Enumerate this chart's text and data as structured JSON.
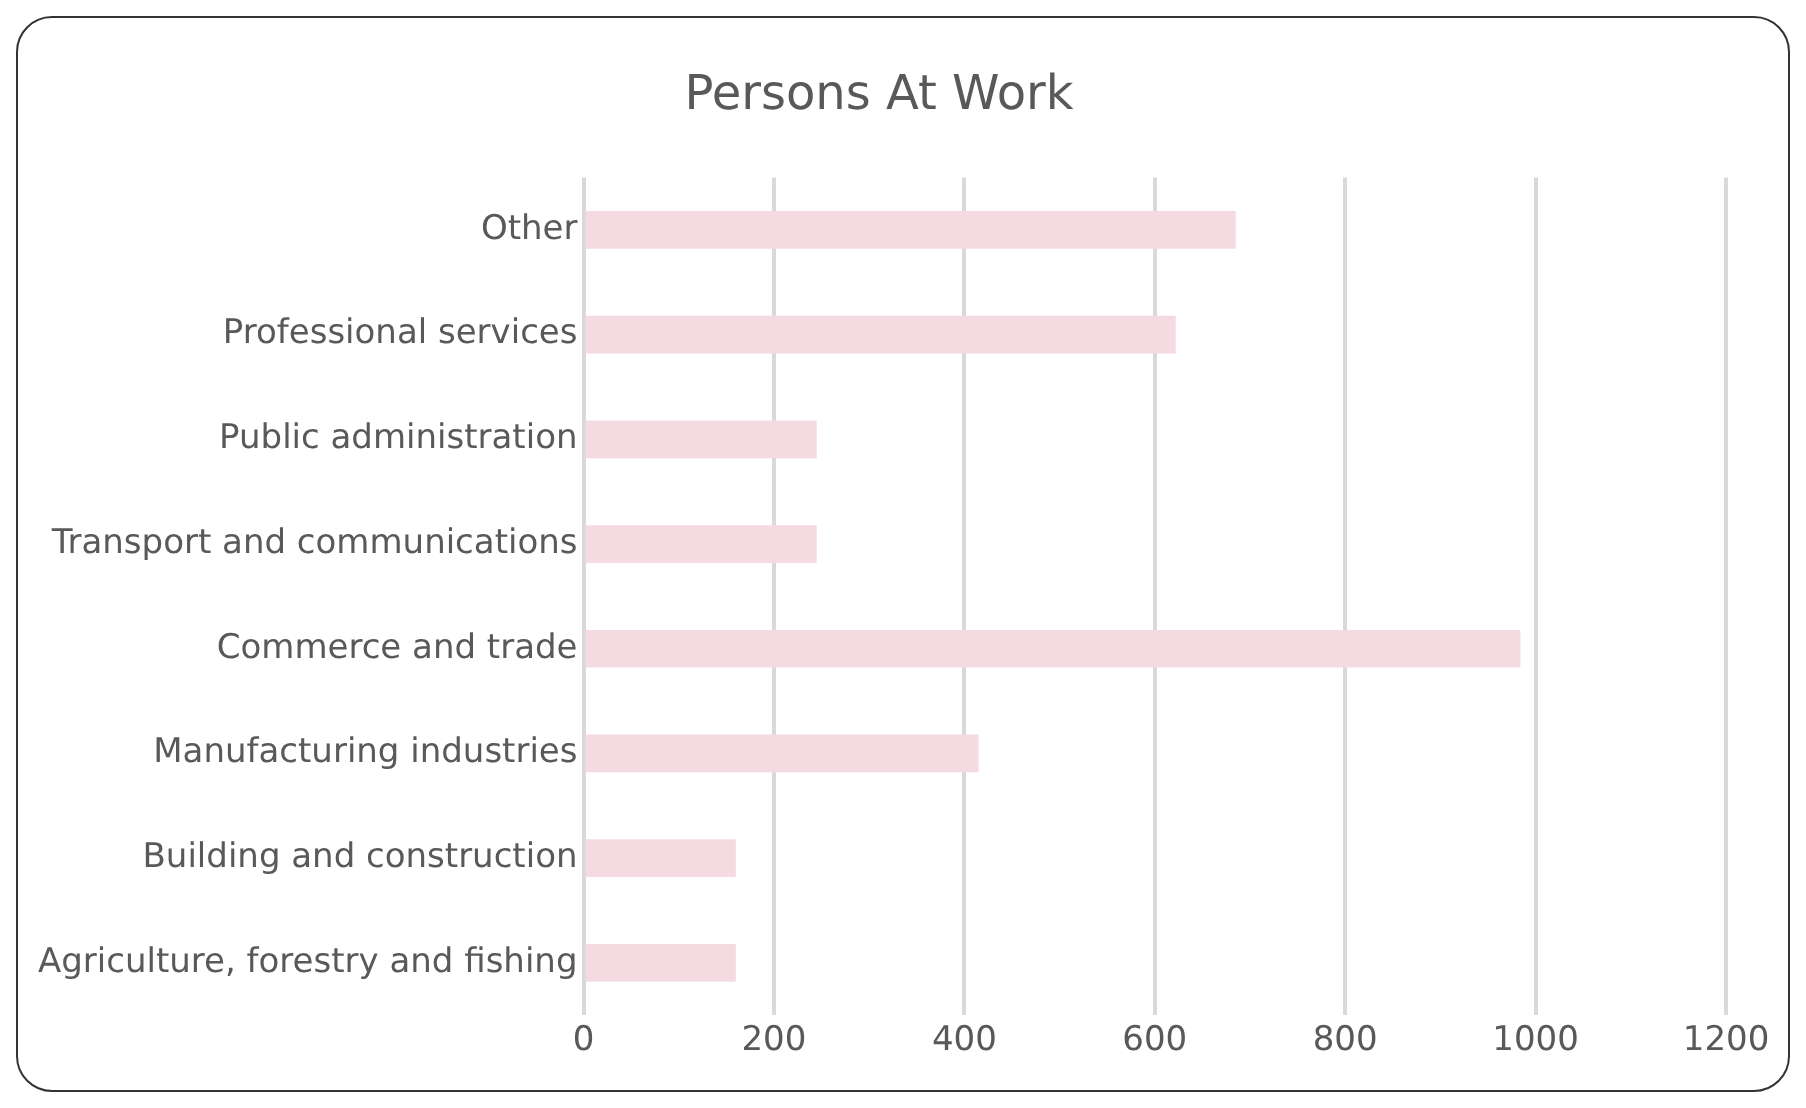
{
  "chart_data": {
    "type": "bar",
    "orientation": "horizontal",
    "title": "Persons At Work",
    "categories": [
      "Other",
      "Professional services",
      "Public administration",
      "Transport and communications",
      "Commerce and trade",
      "Manufacturing industries",
      "Building and construction",
      "Agriculture, forestry and fishing"
    ],
    "values": [
      685,
      622,
      245,
      245,
      984,
      415,
      160,
      160
    ],
    "color": "#f6dae2",
    "xlim": [
      0,
      1200
    ],
    "xticks": [
      0,
      200,
      400,
      600,
      800,
      1000,
      1200
    ],
    "grid": "x",
    "legend": false
  }
}
